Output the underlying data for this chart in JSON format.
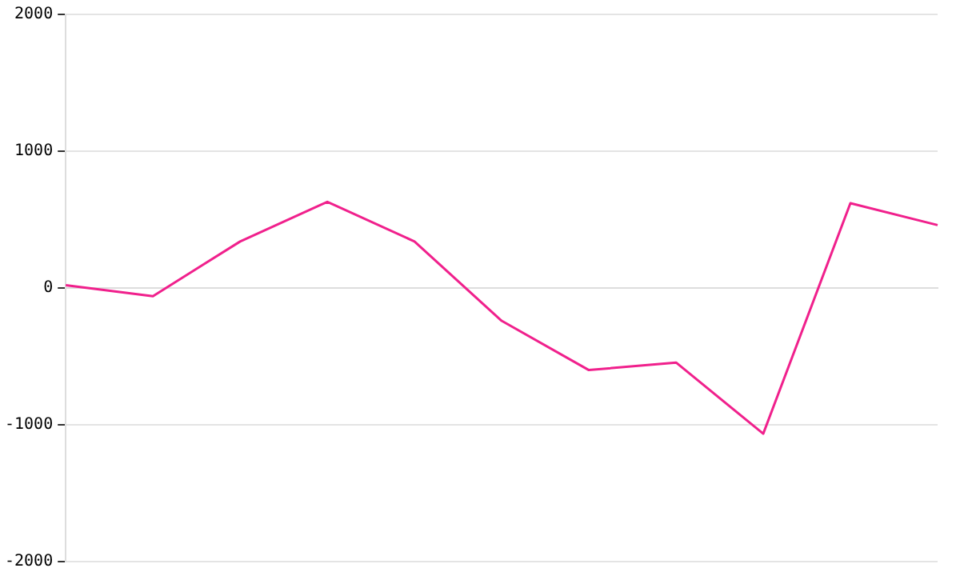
{
  "chart_data": {
    "type": "line",
    "categories": [
      null,
      null,
      null,
      null,
      null,
      null,
      null,
      null,
      null,
      null,
      null
    ],
    "ylim": [
      -2000,
      2000
    ],
    "yticks": [
      -2000,
      -1000,
      0,
      1000,
      2000
    ],
    "grid": "y",
    "tick_labels": "y",
    "marker": "none",
    "line_style": "solid",
    "series": [
      {
        "color": "#f0208c",
        "values": [
          20,
          -60,
          340,
          630,
          340,
          -240,
          -600,
          -545,
          -1065,
          620,
          460
        ]
      }
    ]
  }
}
